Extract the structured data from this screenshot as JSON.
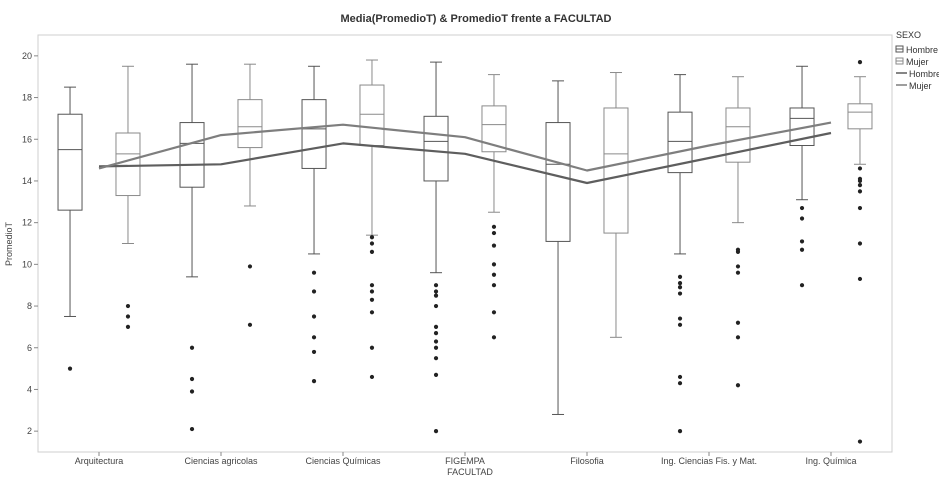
{
  "chart_data": {
    "type": "box",
    "title": "Media(PromedioT) & PromedioT frente a FACULTAD",
    "xlabel": "FACULTAD",
    "ylabel": "PromedioT",
    "ylim": [
      1,
      21
    ],
    "yticks": [
      2,
      4,
      6,
      8,
      10,
      12,
      14,
      16,
      18,
      20
    ],
    "categories": [
      "Arquitectura",
      "Ciencias agricolas",
      "Ciencias Químicas",
      "FIGEMPA",
      "Filosofia",
      "Ing. Ciencias Fis. y Mat.",
      "Ing. Química"
    ],
    "legend": {
      "title": "SEXO",
      "placement": "top-right",
      "items": [
        {
          "label": "Hombre",
          "kind": "box"
        },
        {
          "label": "Mujer",
          "kind": "box"
        },
        {
          "label": "Hombre",
          "kind": "line"
        },
        {
          "label": "Mujer",
          "kind": "line"
        }
      ]
    },
    "boxes": [
      {
        "category": "Arquitectura",
        "sexo": "Hombre",
        "min": 7.5,
        "q1": 12.6,
        "median": 15.5,
        "q3": 17.2,
        "max": 18.5,
        "outliers": [
          5.0
        ]
      },
      {
        "category": "Arquitectura",
        "sexo": "Mujer",
        "min": 11.0,
        "q1": 13.3,
        "median": 15.3,
        "q3": 16.3,
        "max": 19.5,
        "outliers": [
          8.0,
          7.5,
          7.0
        ]
      },
      {
        "category": "Ciencias agricolas",
        "sexo": "Hombre",
        "min": 9.4,
        "q1": 13.7,
        "median": 15.8,
        "q3": 16.8,
        "max": 19.6,
        "outliers": [
          6.0,
          4.5,
          3.9,
          2.1
        ]
      },
      {
        "category": "Ciencias agricolas",
        "sexo": "Mujer",
        "min": 12.8,
        "q1": 15.6,
        "median": 16.6,
        "q3": 17.9,
        "max": 19.6,
        "outliers": [
          9.9,
          7.1
        ]
      },
      {
        "category": "Ciencias Químicas",
        "sexo": "Hombre",
        "min": 10.5,
        "q1": 14.6,
        "median": 16.5,
        "q3": 17.9,
        "max": 19.5,
        "outliers": [
          9.6,
          8.7,
          7.5,
          6.5,
          5.8,
          4.4
        ]
      },
      {
        "category": "Ciencias Químicas",
        "sexo": "Mujer",
        "min": 11.4,
        "q1": 15.7,
        "median": 17.2,
        "q3": 18.6,
        "max": 19.8,
        "outliers": [
          11.3,
          11.0,
          10.6,
          9.0,
          8.7,
          8.3,
          7.7,
          6.0,
          4.6
        ]
      },
      {
        "category": "FIGEMPA",
        "sexo": "Hombre",
        "min": 9.6,
        "q1": 14.0,
        "median": 15.9,
        "q3": 17.1,
        "max": 19.7,
        "outliers": [
          9.0,
          8.7,
          8.5,
          8.0,
          7.0,
          6.7,
          6.3,
          6.0,
          5.5,
          4.7,
          2.0
        ]
      },
      {
        "category": "FIGEMPA",
        "sexo": "Mujer",
        "min": 12.5,
        "q1": 15.4,
        "median": 16.7,
        "q3": 17.6,
        "max": 19.1,
        "outliers": [
          11.8,
          11.5,
          10.9,
          10.0,
          9.5,
          9.0,
          7.7,
          6.5
        ]
      },
      {
        "category": "Filosofia",
        "sexo": "Hombre",
        "min": 2.8,
        "q1": 11.1,
        "median": 14.8,
        "q3": 16.8,
        "max": 18.8,
        "outliers": []
      },
      {
        "category": "Filosofia",
        "sexo": "Mujer",
        "min": 6.5,
        "q1": 11.5,
        "median": 15.3,
        "q3": 17.5,
        "max": 19.2,
        "outliers": []
      },
      {
        "category": "Ing. Ciencias Fis. y Mat.",
        "sexo": "Hombre",
        "min": 10.5,
        "q1": 14.4,
        "median": 15.9,
        "q3": 17.3,
        "max": 19.1,
        "outliers": [
          9.4,
          9.1,
          8.9,
          8.6,
          7.4,
          7.1,
          4.6,
          4.3,
          2.0
        ]
      },
      {
        "category": "Ing. Ciencias Fis. y Mat.",
        "sexo": "Mujer",
        "min": 12.0,
        "q1": 14.9,
        "median": 16.6,
        "q3": 17.5,
        "max": 19.0,
        "outliers": [
          10.7,
          10.6,
          9.9,
          9.6,
          7.2,
          6.5,
          4.2
        ]
      },
      {
        "category": "Ing. Química",
        "sexo": "Hombre",
        "min": 13.1,
        "q1": 15.7,
        "median": 17.0,
        "q3": 17.5,
        "max": 19.5,
        "outliers": [
          12.7,
          12.2,
          11.1,
          10.7,
          9.0
        ]
      },
      {
        "category": "Ing. Química",
        "sexo": "Mujer",
        "min": 14.8,
        "q1": 16.5,
        "median": 17.3,
        "q3": 17.7,
        "max": 19.0,
        "outliers": [
          19.7,
          14.6,
          14.1,
          14.0,
          13.8,
          13.5,
          12.7,
          11.0,
          9.3,
          1.5
        ]
      }
    ],
    "mean_series": [
      {
        "name": "Hombre",
        "color": "#5e5e5e",
        "values": [
          14.7,
          14.8,
          15.8,
          15.3,
          13.9,
          15.1,
          16.3
        ]
      },
      {
        "name": "Mujer",
        "color": "#7e7e7e",
        "values": [
          14.6,
          16.2,
          16.7,
          16.1,
          14.5,
          15.7,
          16.8
        ]
      }
    ],
    "colors": {
      "hombre_box": "#555555",
      "mujer_box": "#8a8a8a",
      "outlier": "#222222"
    }
  }
}
